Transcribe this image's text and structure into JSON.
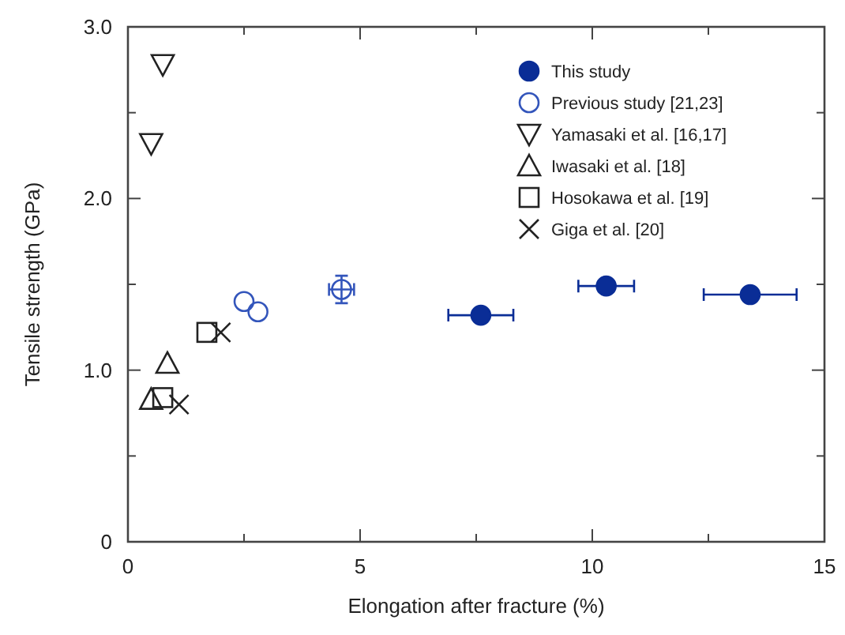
{
  "chart_data": {
    "type": "scatter",
    "xlabel": "Elongation after fracture (%)",
    "ylabel": "Tensile strength (GPa)",
    "xlim": [
      0,
      15
    ],
    "xticks": [
      0,
      {
        "value": 2.5,
        "label": null
      },
      5,
      {
        "value": 7.5,
        "label": null
      },
      10,
      {
        "value": 12.5,
        "label": null
      },
      15
    ],
    "ylim": [
      0,
      3
    ],
    "yticks": [
      0,
      {
        "value": 0.5,
        "label": null
      },
      {
        "value": 1,
        "label": "1.0"
      },
      {
        "value": 1.5,
        "label": null
      },
      {
        "value": 2,
        "label": "2.0"
      },
      {
        "value": 2.5,
        "label": null
      },
      {
        "value": 3,
        "label": "3.0"
      }
    ],
    "grid": false,
    "legend": "top right",
    "series": [
      {
        "name": "This study",
        "color": "#0a2d96",
        "marker": "circle",
        "x": [
          7.6,
          10.3,
          13.4
        ],
        "values": [
          1.32,
          1.49,
          1.44
        ],
        "xerrors": [
          0.7,
          0.6,
          1.0
        ]
      },
      {
        "name": "Previous study [21,23]",
        "color": "#3355bb",
        "marker": "circle-open",
        "x": [
          2.5,
          2.8,
          4.6
        ],
        "values": [
          1.4,
          1.34,
          1.47
        ],
        "xerrors": [
          null,
          null,
          0.27
        ],
        "errors": [
          null,
          null,
          0.08
        ]
      },
      {
        "name": "Yamasaki et al. [16,17]",
        "color": "#222222",
        "marker": "triangle-down",
        "x": [
          0.75,
          0.5
        ],
        "values": [
          2.78,
          2.32
        ]
      },
      {
        "name": "Iwasaki et al. [18]",
        "color": "#222222",
        "marker": "triangle",
        "x": [
          0.85,
          0.5
        ],
        "values": [
          1.04,
          0.83
        ]
      },
      {
        "name": "Hosokawa et al. [19]",
        "color": "#222222",
        "marker": "square",
        "x": [
          1.7,
          0.75
        ],
        "values": [
          1.22,
          0.84
        ]
      },
      {
        "name": "Giga et al. [20]",
        "color": "#222222",
        "marker": "cross",
        "x": [
          2.0,
          1.1
        ],
        "values": [
          1.22,
          0.8
        ]
      }
    ]
  }
}
